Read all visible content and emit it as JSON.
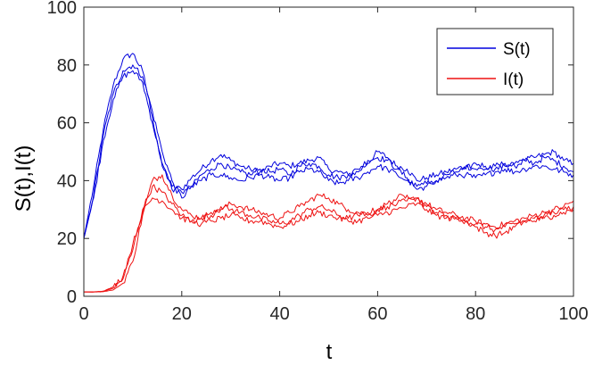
{
  "chart_data": {
    "type": "line",
    "xlabel": "t",
    "ylabel": "S(t),I(t)",
    "xlim": [
      0,
      100
    ],
    "ylim": [
      0,
      100
    ],
    "x_ticks": [
      0,
      20,
      40,
      60,
      80,
      100
    ],
    "y_ticks": [
      0,
      20,
      40,
      60,
      80,
      100
    ],
    "x_tick_labels": [
      "0",
      "20",
      "40",
      "60",
      "80",
      "100"
    ],
    "y_tick_labels": [
      "0",
      "20",
      "40",
      "60",
      "80",
      "100"
    ],
    "grid": false,
    "legend_position": "top-right",
    "series": [
      {
        "name": "S(t)",
        "color": "#0000dd",
        "x": [
          0,
          2,
          4,
          6,
          8,
          10,
          12,
          14,
          16,
          18,
          20,
          22,
          24,
          26,
          28,
          30,
          32,
          34,
          36,
          38,
          40,
          42,
          44,
          46,
          48,
          50,
          52,
          54,
          56,
          58,
          60,
          62,
          64,
          66,
          68,
          70,
          72,
          74,
          76,
          78,
          80,
          82,
          84,
          86,
          88,
          90,
          92,
          94,
          96,
          98,
          100
        ],
        "runs": [
          [
            20,
            38,
            58,
            73,
            82,
            84,
            78,
            62,
            45,
            38,
            37,
            41,
            44,
            47,
            49,
            47,
            45,
            44,
            43,
            45,
            46,
            45,
            46,
            47,
            48,
            44,
            43,
            42,
            43,
            46,
            50,
            48,
            45,
            44,
            40,
            41,
            42,
            43,
            44,
            45,
            44,
            44,
            45,
            46,
            45,
            47,
            48,
            49,
            50,
            47,
            46
          ],
          [
            20,
            35,
            56,
            70,
            78,
            80,
            76,
            64,
            50,
            40,
            34,
            38,
            42,
            44,
            46,
            44,
            43,
            42,
            44,
            43,
            44,
            42,
            45,
            46,
            45,
            42,
            41,
            42,
            44,
            47,
            48,
            47,
            44,
            41,
            37,
            38,
            40,
            42,
            43,
            44,
            46,
            45,
            44,
            45,
            46,
            47,
            46,
            48,
            47,
            45,
            43
          ],
          [
            20,
            34,
            54,
            68,
            76,
            78,
            74,
            60,
            46,
            37,
            36,
            38,
            40,
            42,
            42,
            41,
            40,
            41,
            42,
            41,
            40,
            41,
            43,
            44,
            43,
            40,
            39,
            40,
            41,
            43,
            45,
            44,
            42,
            40,
            38,
            39,
            40,
            41,
            42,
            42,
            41,
            42,
            43,
            44,
            43,
            44,
            45,
            45,
            44,
            43,
            42
          ]
        ]
      },
      {
        "name": "I(t)",
        "color": "#ee1111",
        "x": [
          0,
          2,
          4,
          6,
          8,
          10,
          12,
          14,
          16,
          18,
          20,
          22,
          24,
          26,
          28,
          30,
          32,
          34,
          36,
          38,
          40,
          42,
          44,
          46,
          48,
          50,
          52,
          54,
          56,
          58,
          60,
          62,
          64,
          66,
          68,
          70,
          72,
          74,
          76,
          78,
          80,
          82,
          84,
          86,
          88,
          90,
          92,
          94,
          96,
          98,
          100
        ],
        "runs": [
          [
            1.5,
            1.5,
            1.6,
            2.2,
            4.5,
            12,
            28,
            40,
            42,
            35,
            30,
            28,
            27,
            28,
            30,
            32,
            31,
            30,
            29,
            28,
            27,
            29,
            31,
            33,
            35,
            34,
            32,
            30,
            29,
            28,
            30,
            31,
            32,
            33,
            34,
            32,
            30,
            29,
            28,
            27,
            26,
            25,
            24,
            25,
            26,
            27,
            28,
            29,
            30,
            31,
            33
          ],
          [
            1.5,
            1.5,
            1.7,
            2.8,
            6,
            16,
            30,
            38,
            36,
            32,
            28,
            26,
            27,
            29,
            31,
            30,
            29,
            28,
            27,
            26,
            25,
            26,
            28,
            30,
            31,
            30,
            28,
            27,
            28,
            29,
            30,
            32,
            34,
            35,
            34,
            31,
            29,
            28,
            27,
            26,
            24,
            22,
            21,
            22,
            24,
            26,
            27,
            28,
            29,
            30,
            31
          ],
          [
            1.5,
            1.5,
            1.8,
            3.2,
            7,
            18,
            29,
            34,
            33,
            30,
            27,
            26,
            25,
            26,
            27,
            28,
            27,
            26,
            26,
            25,
            24,
            25,
            26,
            28,
            29,
            28,
            27,
            26,
            26,
            27,
            28,
            29,
            30,
            31,
            32,
            30,
            28,
            27,
            27,
            26,
            25,
            24,
            23,
            24,
            25,
            26,
            26,
            27,
            28,
            29,
            30
          ]
        ]
      }
    ]
  }
}
